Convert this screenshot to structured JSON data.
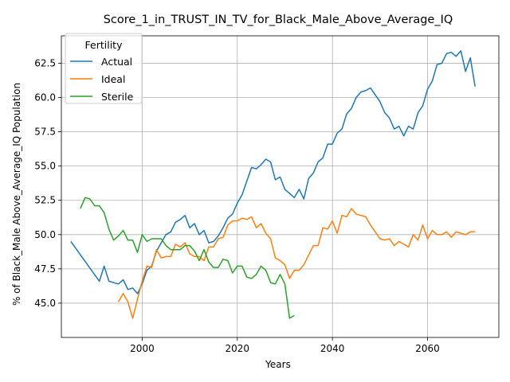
{
  "chart_data": {
    "type": "line",
    "title": "Score_1_in_TRUST_IN_TV_for_Black_Male_Above_Average_IQ",
    "xlabel": "Years",
    "ylabel": "% of Black_Male Above_Average_IQ Population",
    "xlim": [
      1983,
      2075
    ],
    "ylim": [
      42.5,
      64.5
    ],
    "xticks": [
      2000,
      2020,
      2040,
      2060
    ],
    "yticks": [
      45.0,
      47.5,
      50.0,
      52.5,
      55.0,
      57.5,
      60.0,
      62.5
    ],
    "grid": true,
    "legend": {
      "title": "Fertility",
      "placement": "top-left"
    },
    "series": [
      {
        "name": "Actual",
        "color": "#1f77b4",
        "x": [
          1985,
          1991,
          1992,
          1993,
          1995,
          1996,
          1997,
          1998,
          1999,
          2000,
          2001,
          2002,
          2003,
          2004,
          2005,
          2006,
          2007,
          2008,
          2009,
          2010,
          2011,
          2012,
          2013,
          2014,
          2015,
          2016,
          2017,
          2018,
          2019,
          2020,
          2021,
          2022,
          2023,
          2024,
          2025,
          2026,
          2027,
          2028,
          2029,
          2030,
          2031,
          2032,
          2033,
          2034,
          2035,
          2036,
          2037,
          2038,
          2039,
          2040,
          2041,
          2042,
          2043,
          2044,
          2045,
          2046,
          2047,
          2048,
          2049,
          2050,
          2051,
          2052,
          2053,
          2054,
          2055,
          2056,
          2057,
          2058,
          2059,
          2060,
          2061,
          2062,
          2063,
          2064,
          2065,
          2066,
          2067,
          2068,
          2069,
          2070
        ],
        "values": [
          49.5,
          46.6,
          47.7,
          46.6,
          46.4,
          46.7,
          46.0,
          46.1,
          45.7,
          46.4,
          47.4,
          47.7,
          48.8,
          49.4,
          50.0,
          50.2,
          50.9,
          51.1,
          51.4,
          50.5,
          50.8,
          50.0,
          50.3,
          49.4,
          49.5,
          49.9,
          50.5,
          51.2,
          51.5,
          52.3,
          52.9,
          53.9,
          54.9,
          54.8,
          55.1,
          55.5,
          55.3,
          54.0,
          54.2,
          53.3,
          53.0,
          52.7,
          53.3,
          52.6,
          54.1,
          54.5,
          55.3,
          55.6,
          56.6,
          56.6,
          57.4,
          57.7,
          58.8,
          59.2,
          60.0,
          60.4,
          60.5,
          60.7,
          60.2,
          59.7,
          58.9,
          58.5,
          57.7,
          57.9,
          57.2,
          57.9,
          57.7,
          58.9,
          59.4,
          60.6,
          61.2,
          62.4,
          62.5,
          63.2,
          63.3,
          63.0,
          63.4,
          61.9,
          62.9,
          60.8
        ]
      },
      {
        "name": "Ideal",
        "color": "#ff7f0e",
        "x": [
          1995,
          1996,
          1997,
          1998,
          1999,
          2000,
          2001,
          2002,
          2003,
          2004,
          2005,
          2006,
          2007,
          2008,
          2009,
          2010,
          2011,
          2012,
          2013,
          2014,
          2015,
          2016,
          2017,
          2018,
          2019,
          2020,
          2021,
          2022,
          2023,
          2024,
          2025,
          2026,
          2027,
          2028,
          2029,
          2030,
          2031,
          2032,
          2033,
          2034,
          2035,
          2036,
          2037,
          2038,
          2039,
          2040,
          2041,
          2042,
          2043,
          2044,
          2045,
          2046,
          2047,
          2048,
          2049,
          2050,
          2051,
          2052,
          2053,
          2054,
          2055,
          2056,
          2057,
          2058,
          2059,
          2060,
          2061,
          2062,
          2063,
          2064,
          2065,
          2066,
          2067,
          2068,
          2069,
          2070
        ],
        "values": [
          45.1,
          45.7,
          45.1,
          43.9,
          45.3,
          46.6,
          47.7,
          47.6,
          48.9,
          48.3,
          48.4,
          48.4,
          49.3,
          49.1,
          49.4,
          48.6,
          48.4,
          48.4,
          48.1,
          49.1,
          49.1,
          49.7,
          49.8,
          50.7,
          51.0,
          51.0,
          51.2,
          51.1,
          51.3,
          50.5,
          50.8,
          50.1,
          49.7,
          48.3,
          48.1,
          47.8,
          46.8,
          47.4,
          47.4,
          47.8,
          48.5,
          49.2,
          49.2,
          50.5,
          50.4,
          51.0,
          50.1,
          51.4,
          51.3,
          51.9,
          51.5,
          51.4,
          51.3,
          50.7,
          50.2,
          49.7,
          49.6,
          49.7,
          49.2,
          49.5,
          49.3,
          49.1,
          50.0,
          49.6,
          50.7,
          49.7,
          50.3,
          50.0,
          50.0,
          50.2,
          49.8,
          50.2,
          50.1,
          50.0,
          50.2,
          50.2
        ]
      },
      {
        "name": "Sterile",
        "color": "#2ca02c",
        "x": [
          1987,
          1988,
          1989,
          1990,
          1991,
          1992,
          1993,
          1994,
          1995,
          1996,
          1997,
          1998,
          1999,
          2000,
          2001,
          2002,
          2003,
          2004,
          2005,
          2006,
          2007,
          2008,
          2009,
          2010,
          2011,
          2012,
          2013,
          2014,
          2015,
          2016,
          2017,
          2018,
          2019,
          2020,
          2021,
          2022,
          2023,
          2024,
          2025,
          2026,
          2027,
          2028,
          2029,
          2030,
          2031,
          2032
        ],
        "values": [
          51.9,
          52.7,
          52.6,
          52.1,
          52.1,
          51.6,
          50.4,
          49.6,
          49.9,
          50.3,
          49.6,
          49.6,
          48.7,
          50.0,
          49.5,
          49.7,
          49.7,
          49.7,
          49.2,
          48.9,
          48.9,
          48.9,
          49.2,
          49.2,
          48.8,
          48.1,
          48.9,
          48.0,
          47.6,
          47.6,
          48.2,
          48.1,
          47.2,
          47.7,
          47.7,
          46.9,
          46.8,
          47.1,
          47.7,
          47.4,
          46.5,
          46.4,
          47.1,
          46.4,
          43.9,
          44.1
        ]
      }
    ]
  }
}
